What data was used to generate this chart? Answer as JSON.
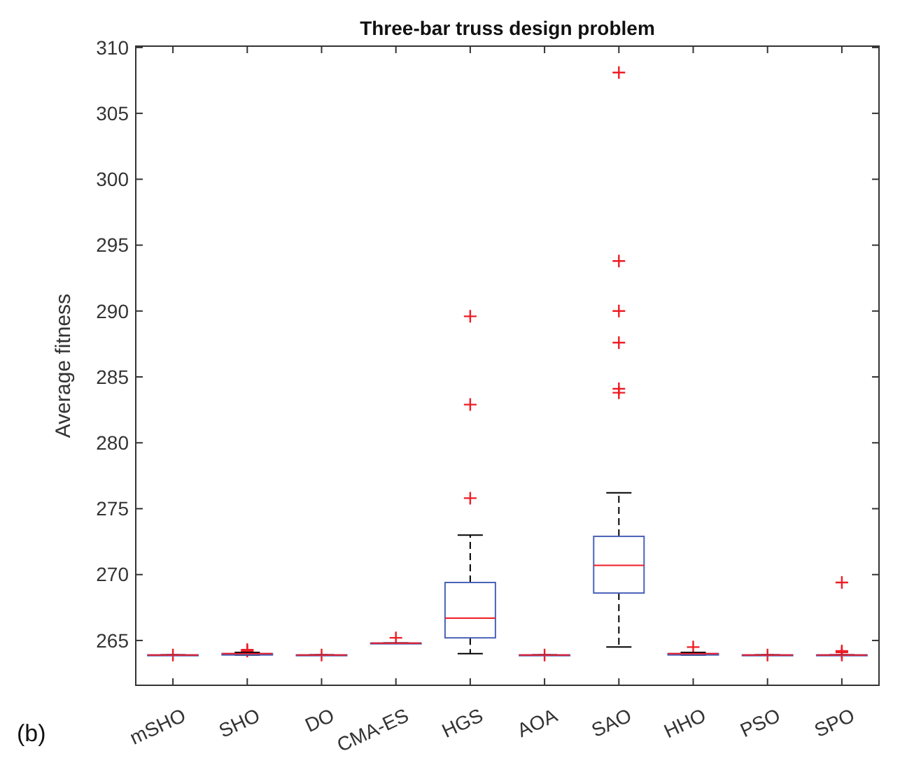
{
  "chart_data": {
    "type": "box",
    "title": "Three-bar truss design problem",
    "ylabel": "Average fitness",
    "annotations": [
      "(b)"
    ],
    "categories": [
      "mSHO",
      "SHO",
      "DO",
      "CMA-ES",
      "HGS",
      "AOA",
      "SAO",
      "HHO",
      "PSO",
      "SPO"
    ],
    "ylim": [
      261.6,
      310.1
    ],
    "yticks": [
      265,
      270,
      275,
      280,
      285,
      290,
      295,
      300,
      305,
      310
    ],
    "grid": false,
    "boxes": [
      {
        "low": 263.9,
        "q1": 263.9,
        "median": 263.9,
        "q3": 263.9,
        "high": 263.9,
        "outliers": [
          263.9
        ]
      },
      {
        "low": 263.9,
        "q1": 263.9,
        "median": 264.0,
        "q3": 264.0,
        "high": 264.1,
        "outliers": [
          264.2,
          264.3
        ]
      },
      {
        "low": 263.9,
        "q1": 263.9,
        "median": 263.9,
        "q3": 263.9,
        "high": 263.9,
        "outliers": [
          263.9
        ]
      },
      {
        "low": 264.8,
        "q1": 264.8,
        "median": 264.8,
        "q3": 264.8,
        "high": 264.8,
        "outliers": [
          265.2
        ]
      },
      {
        "low": 264.0,
        "q1": 265.2,
        "median": 266.7,
        "q3": 269.4,
        "high": 273.0,
        "outliers": [
          275.8,
          282.9,
          289.6
        ]
      },
      {
        "low": 263.9,
        "q1": 263.9,
        "median": 263.9,
        "q3": 263.9,
        "high": 263.9,
        "outliers": [
          263.9
        ]
      },
      {
        "low": 264.5,
        "q1": 268.6,
        "median": 270.7,
        "q3": 272.9,
        "high": 276.2,
        "outliers": [
          283.8,
          284.1,
          287.6,
          290.0,
          293.8,
          308.1
        ]
      },
      {
        "low": 263.9,
        "q1": 263.9,
        "median": 264.0,
        "q3": 264.0,
        "high": 264.1,
        "outliers": [
          264.5
        ]
      },
      {
        "low": 263.9,
        "q1": 263.9,
        "median": 263.9,
        "q3": 263.9,
        "high": 263.9,
        "outliers": [
          263.9
        ]
      },
      {
        "low": 263.9,
        "q1": 263.9,
        "median": 263.9,
        "q3": 263.9,
        "high": 263.9,
        "outliers": [
          263.9,
          264.1,
          264.2,
          269.4
        ]
      }
    ]
  }
}
